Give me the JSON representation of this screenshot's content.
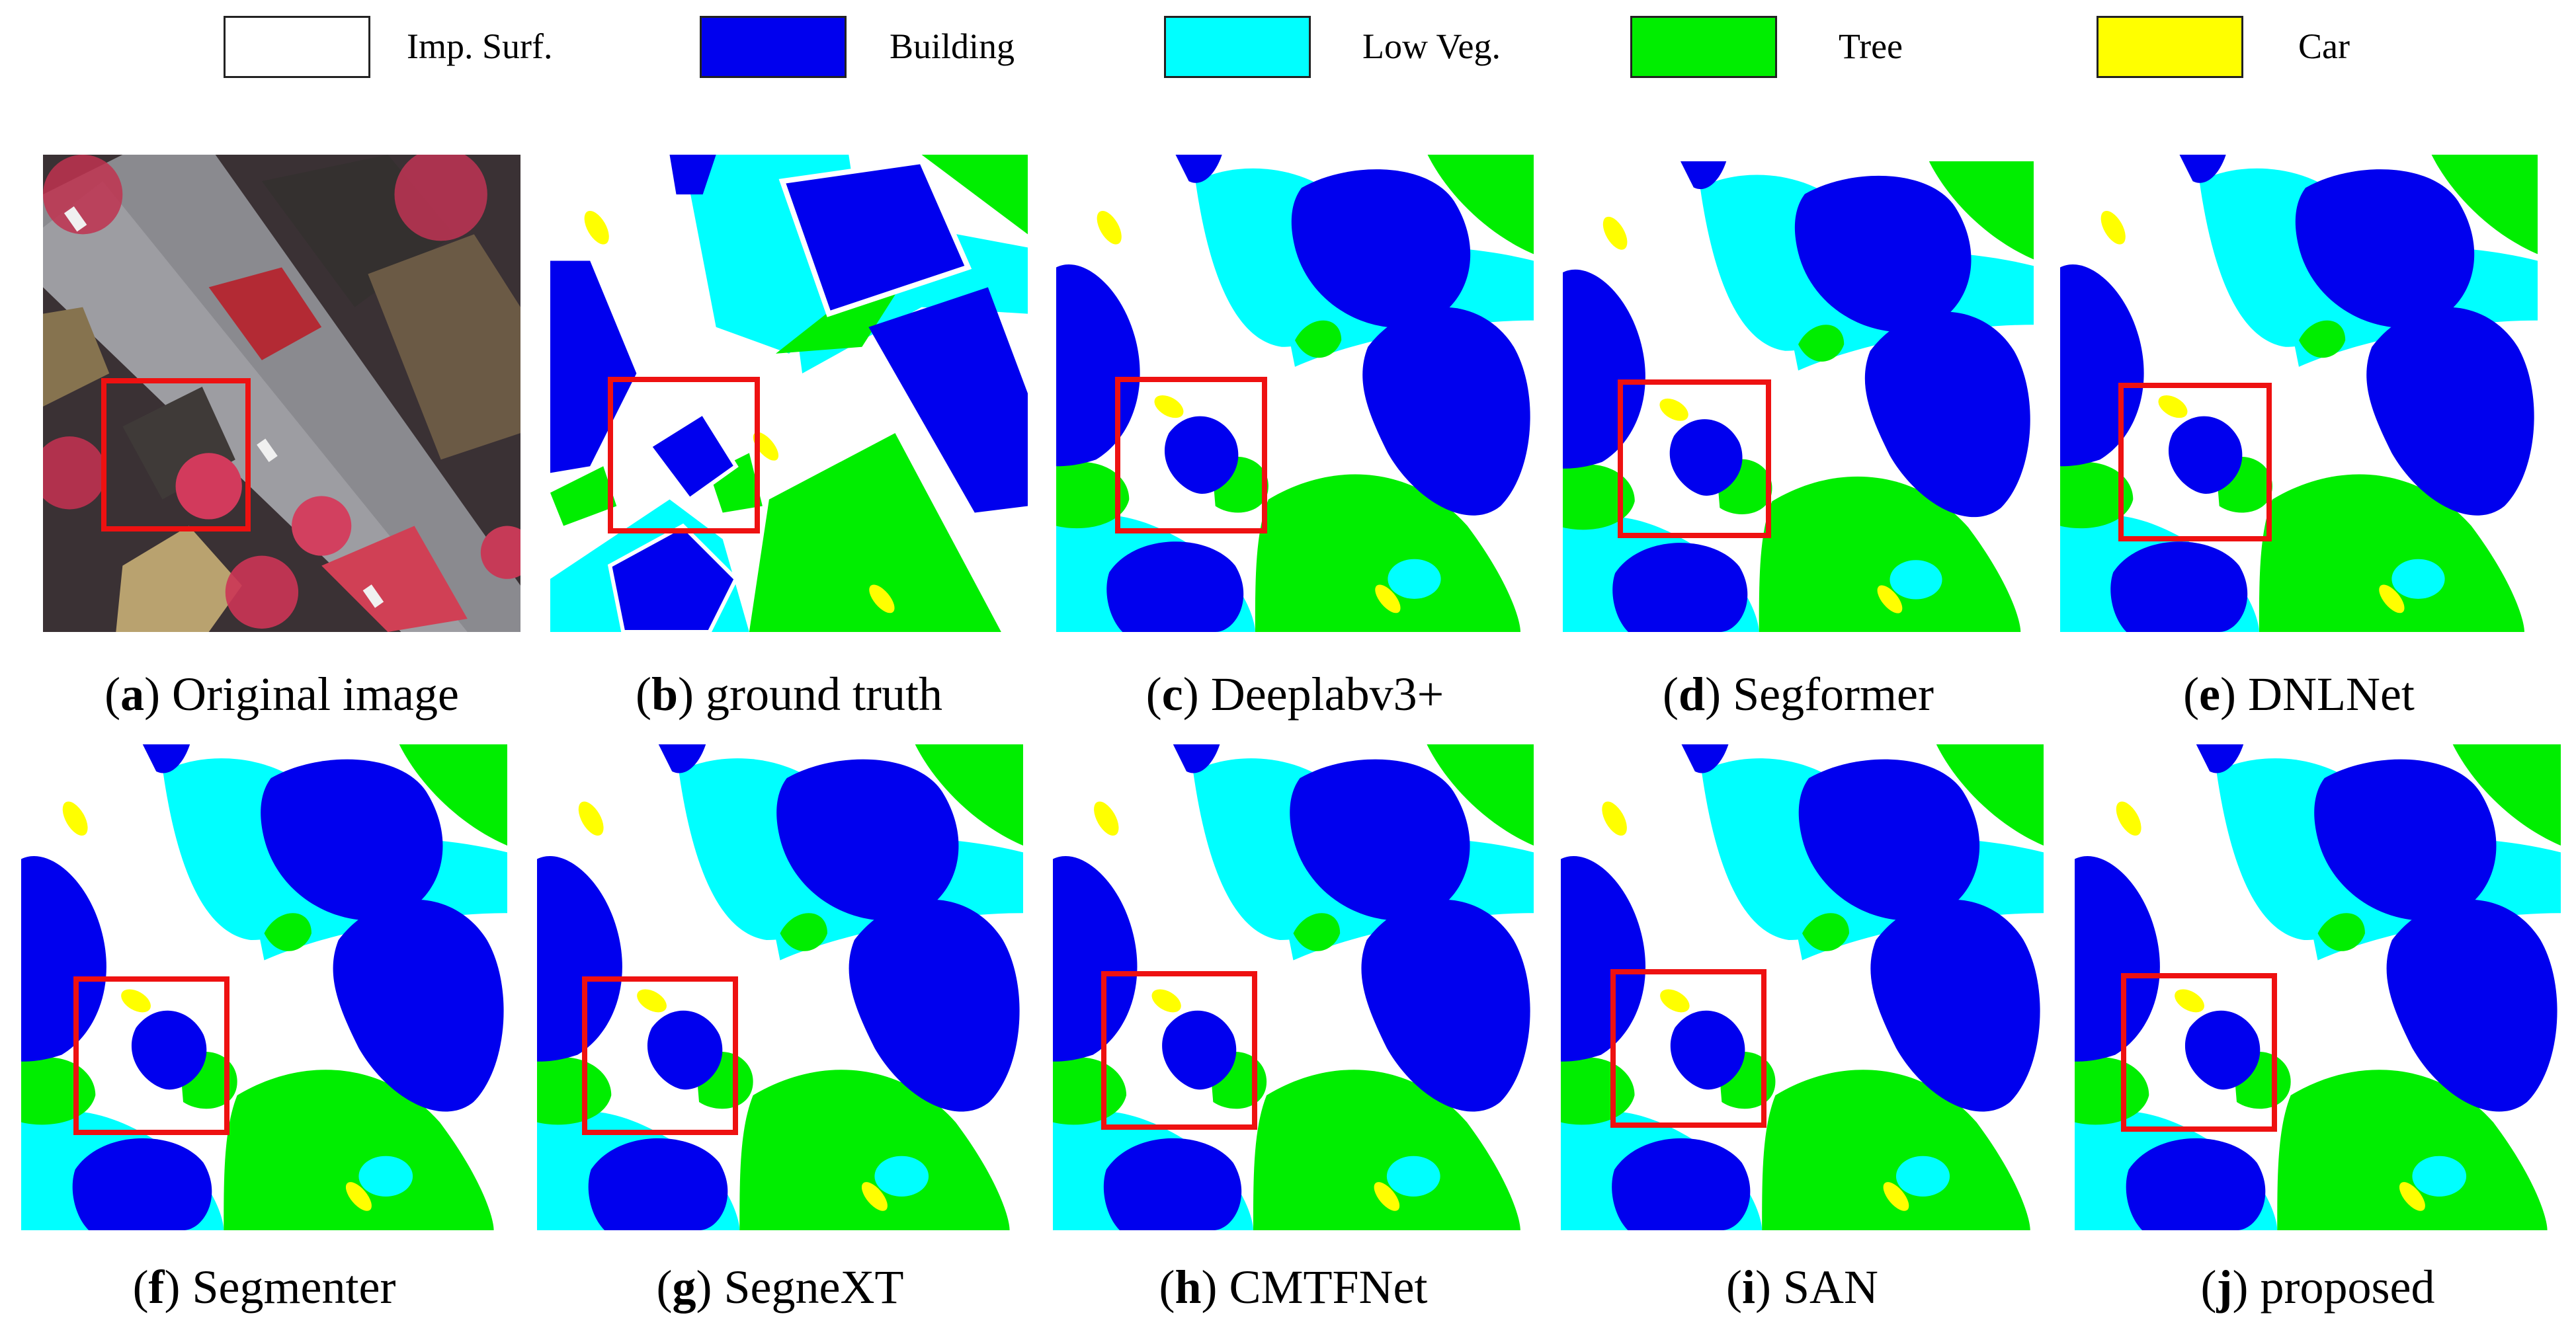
{
  "legend": [
    {
      "label": "Imp. Surf.",
      "color": "#ffffff"
    },
    {
      "label": "Building",
      "color": "#0000ee"
    },
    {
      "label": "Low Veg.",
      "color": "#00ffff"
    },
    {
      "label": "Tree",
      "color": "#00ee00"
    },
    {
      "label": "Car",
      "color": "#ffff00"
    }
  ],
  "colors": {
    "imp_surf": "#ffffff",
    "building": "#0000ee",
    "low_veg": "#00ffff",
    "tree": "#00ee00",
    "car": "#ffff00",
    "highlight_box": "#ee1111"
  },
  "panels": [
    {
      "letter": "a",
      "title": "Original image"
    },
    {
      "letter": "b",
      "title": "ground truth"
    },
    {
      "letter": "c",
      "title": "Deeplabv3+"
    },
    {
      "letter": "d",
      "title": "Segformer"
    },
    {
      "letter": "e",
      "title": "DNLNet"
    },
    {
      "letter": "f",
      "title": "Segmenter"
    },
    {
      "letter": "g",
      "title": "SegneXT"
    },
    {
      "letter": "h",
      "title": "CMTFNet"
    },
    {
      "letter": "i",
      "title": "SAN"
    },
    {
      "letter": "j",
      "title": "proposed"
    }
  ]
}
